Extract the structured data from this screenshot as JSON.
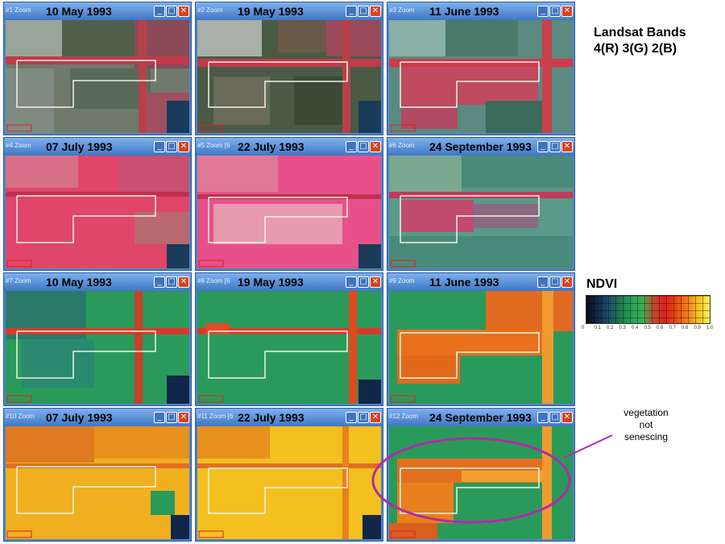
{
  "rgb_heading": {
    "line1": "Landsat Bands",
    "line2": "4(R) 3(G) 2(B)"
  },
  "ndvi_legend": {
    "title": "NDVI",
    "ticks": [
      "0",
      "0.1",
      "0.2",
      "0.3",
      "0.4",
      "0.5",
      "0.6",
      "0.7",
      "0.8",
      "0.9",
      "1.0"
    ],
    "gradient_colors": [
      "#0b0b14",
      "#102a4a",
      "#1f4f6a",
      "#1f7a4a",
      "#27a05a",
      "#38b050",
      "#c04a30",
      "#e02020",
      "#e84a10",
      "#f08020",
      "#f8c020",
      "#fff060"
    ]
  },
  "annotation": {
    "lines": [
      "vegetation",
      "not",
      "senescing"
    ],
    "color": "#b02aa8"
  },
  "windows": [
    {
      "tag": "#1 Zoom",
      "date": "10 May 1993",
      "kind": "rgb"
    },
    {
      "tag": "#2 Zoom",
      "date": "19 May 1993",
      "kind": "rgb"
    },
    {
      "tag": "#3 Zoom",
      "date": "11 June 1993",
      "kind": "rgb"
    },
    {
      "tag": "#4 Zoom",
      "date": "07 July 1993",
      "kind": "rgb"
    },
    {
      "tag": "#5 Zoom [6",
      "date": "22 July 1993",
      "kind": "rgb"
    },
    {
      "tag": "#6 Zoom",
      "date": "24 September 1993",
      "kind": "rgb"
    },
    {
      "tag": "#7 Zoom",
      "date": "10 May 1993",
      "kind": "ndvi"
    },
    {
      "tag": "#8 Zoom [6",
      "date": "19 May 1993",
      "kind": "ndvi"
    },
    {
      "tag": "#9 Zoom",
      "date": "11 June 1993",
      "kind": "ndvi"
    },
    {
      "tag": "#10 Zoom",
      "date": "07 July 1993",
      "kind": "ndvi"
    },
    {
      "tag": "#11 Zoom [6",
      "date": "22 July 1993",
      "kind": "ndvi"
    },
    {
      "tag": "#12 Zoom",
      "date": "24 September 1993",
      "kind": "ndvi"
    }
  ],
  "window_buttons": {
    "minimize": "_",
    "maximize": "□",
    "close": "✕"
  }
}
